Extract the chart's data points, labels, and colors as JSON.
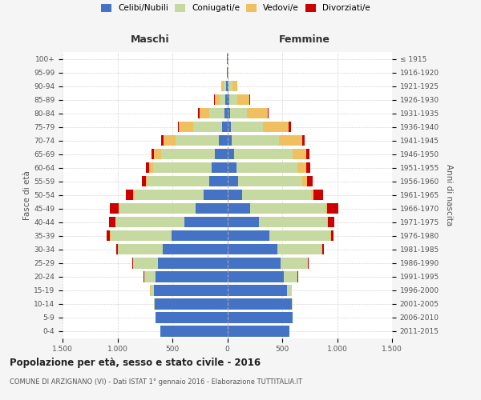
{
  "age_groups": [
    "0-4",
    "5-9",
    "10-14",
    "15-19",
    "20-24",
    "25-29",
    "30-34",
    "35-39",
    "40-44",
    "45-49",
    "50-54",
    "55-59",
    "60-64",
    "65-69",
    "70-74",
    "75-79",
    "80-84",
    "85-89",
    "90-94",
    "95-99",
    "100+"
  ],
  "birth_years": [
    "2011-2015",
    "2006-2010",
    "2001-2005",
    "1996-2000",
    "1991-1995",
    "1986-1990",
    "1981-1985",
    "1976-1980",
    "1971-1975",
    "1966-1970",
    "1961-1965",
    "1956-1960",
    "1951-1955",
    "1946-1950",
    "1941-1945",
    "1936-1940",
    "1931-1935",
    "1926-1930",
    "1921-1925",
    "1916-1920",
    "≤ 1915"
  ],
  "colors": {
    "celibe": "#4472C4",
    "coniugato": "#C5D9A0",
    "vedovo": "#F0C060",
    "divorziato": "#CC0000"
  },
  "males": {
    "celibe": [
      610,
      650,
      660,
      665,
      650,
      630,
      590,
      510,
      390,
      290,
      215,
      165,
      145,
      110,
      80,
      50,
      25,
      15,
      8,
      2,
      2
    ],
    "coniugato": [
      1,
      2,
      5,
      35,
      105,
      225,
      405,
      555,
      625,
      690,
      630,
      560,
      530,
      490,
      390,
      260,
      140,
      55,
      25,
      2,
      0
    ],
    "vedovo": [
      1,
      1,
      1,
      2,
      2,
      2,
      2,
      3,
      5,
      6,
      12,
      18,
      35,
      65,
      110,
      130,
      90,
      45,
      20,
      2,
      0
    ],
    "divorziato": [
      0,
      0,
      1,
      2,
      5,
      10,
      16,
      32,
      55,
      85,
      65,
      38,
      32,
      22,
      22,
      12,
      12,
      6,
      3,
      0,
      0
    ]
  },
  "females": {
    "nubile": [
      565,
      595,
      585,
      545,
      515,
      485,
      455,
      385,
      285,
      205,
      135,
      102,
      82,
      62,
      42,
      32,
      22,
      15,
      10,
      3,
      2
    ],
    "coniugata": [
      1,
      2,
      10,
      42,
      125,
      245,
      405,
      555,
      625,
      690,
      630,
      580,
      560,
      530,
      430,
      290,
      155,
      75,
      35,
      3,
      0
    ],
    "vedova": [
      1,
      1,
      1,
      1,
      1,
      2,
      2,
      3,
      6,
      12,
      22,
      45,
      75,
      130,
      210,
      240,
      190,
      110,
      45,
      5,
      0
    ],
    "divorziata": [
      0,
      0,
      1,
      2,
      5,
      10,
      15,
      26,
      62,
      105,
      85,
      52,
      37,
      26,
      22,
      16,
      12,
      6,
      3,
      0,
      0
    ]
  },
  "xlim": 1500,
  "xticks": [
    -1500,
    -1000,
    -500,
    0,
    500,
    1000,
    1500
  ],
  "xtick_labels": [
    "1.500",
    "1.000",
    "500",
    "0",
    "500",
    "1.000",
    "1.500"
  ],
  "title": "Popolazione per età, sesso e stato civile - 2016",
  "subtitle": "COMUNE DI ARZIGNANO (VI) - Dati ISTAT 1° gennaio 2016 - Elaborazione TUTTITALIA.IT",
  "ylabel_left": "Fasce di età",
  "ylabel_right": "Anni di nascita",
  "xlabel_left": "Maschi",
  "xlabel_right": "Femmine",
  "bg_color": "#f5f5f5",
  "plot_bg": "#ffffff",
  "grid_color": "#cccccc",
  "legend_labels": [
    "Celibi/Nubili",
    "Coniugati/e",
    "Vedovi/e",
    "Divorziati/e"
  ]
}
